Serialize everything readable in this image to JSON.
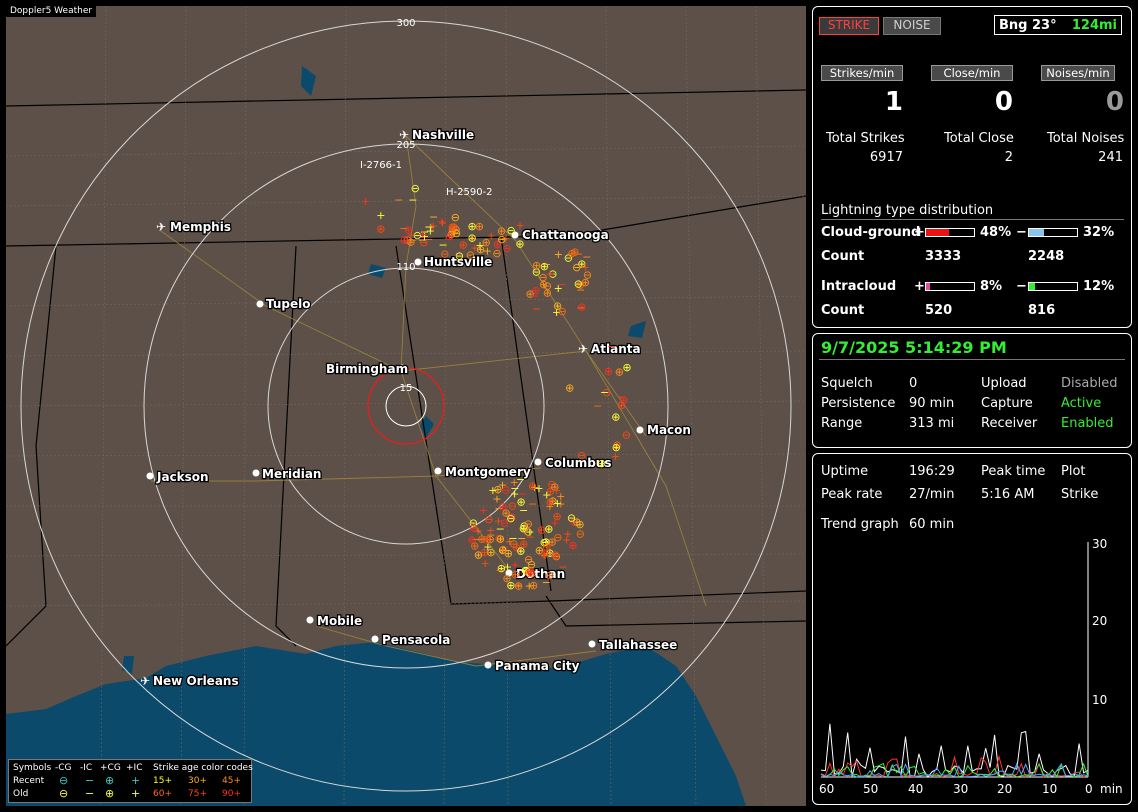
{
  "app": {
    "title": "Doppler5 Weather"
  },
  "header": {
    "strike_label": "STRIKE",
    "noise_label": "NOISE",
    "bearing": "Bng 23°",
    "range": "124mi"
  },
  "rates": {
    "strikes_label": "Strikes/min",
    "close_label": "Close/min",
    "noises_label": "Noises/min",
    "strikes": "1",
    "close": "0",
    "noises": "0"
  },
  "totals": {
    "strikes_label": "Total Strikes",
    "close_label": "Total Close",
    "noises_label": "Total Noises",
    "strikes": "6917",
    "close": "2",
    "noises": "241"
  },
  "distribution": {
    "title": "Lightning type distribution",
    "cg_label": "Cloud-ground",
    "ic_label": "Intracloud",
    "count_label": "Count",
    "plus": "+",
    "minus": "−",
    "cg_pos_pct": "48%",
    "cg_neg_pct": "32%",
    "cg_pos_count": "3333",
    "cg_neg_count": "2248",
    "ic_pos_pct": "8%",
    "ic_neg_pct": "12%",
    "ic_pos_count": "520",
    "ic_neg_count": "816",
    "cg_pos_fill": 0.48,
    "cg_neg_fill": 0.32,
    "ic_pos_fill": 0.08,
    "ic_neg_fill": 0.12
  },
  "status": {
    "datetime": "9/7/2025 5:14:29 PM",
    "squelch_label": "Squelch",
    "squelch": "0",
    "persistence_label": "Persistence",
    "persistence": "90 min",
    "range_label": "Range",
    "range": "313 mi",
    "upload_label": "Upload",
    "upload": "Disabled",
    "capture_label": "Capture",
    "capture": "Active",
    "receiver_label": "Receiver",
    "receiver": "Enabled"
  },
  "stats": {
    "uptime_label": "Uptime",
    "uptime": "196:29",
    "peak_time_label": "Peak time",
    "peak_time": "5:16 AM",
    "plot_label": "Plot",
    "plot": "Strike",
    "peak_rate_label": "Peak rate",
    "peak_rate": "27/min",
    "trend_label": "Trend graph",
    "trend": "60 min"
  },
  "trend_axis": {
    "y_ticks": [
      "30",
      "20",
      "10"
    ],
    "x_ticks": [
      "60",
      "50",
      "40",
      "30",
      "20",
      "10",
      "0"
    ],
    "unit": "min"
  },
  "map": {
    "rings": [
      "300",
      "205",
      "110",
      "15"
    ],
    "cities": [
      "Nashville",
      "Memphis",
      "Chattanooga",
      "Huntsville",
      "Tupelo",
      "Atlanta",
      "Birmingham",
      "Macon",
      "Columbus",
      "Jackson",
      "Meridian",
      "Montgomery",
      "Dothan",
      "Mobile",
      "Pensacola",
      "Tallahassee",
      "Panama City",
      "New Orleans"
    ],
    "road_labels": [
      "I-2766-1",
      "H-2590-2"
    ]
  },
  "legend": {
    "symbols_label": "Symbols",
    "neg_cg": "-CG",
    "neg_ic": "-IC",
    "pos_cg": "+CG",
    "pos_ic": "+IC",
    "age_label": "Strike age color codes",
    "recent_label": "Recent",
    "old_label": "Old",
    "recent_ages": [
      "15+",
      "30+",
      "45+"
    ],
    "old_ages": [
      "60+",
      "75+",
      "90+"
    ],
    "age_colors": [
      "#ffff33",
      "#ffb020",
      "#ff8c1a",
      "#ff6a10",
      "#ff4a10",
      "#ff3020"
    ]
  },
  "colors": {
    "land": "#5c5048",
    "water": "#0b4a6a",
    "active": "#33ee33",
    "strike_red": "#ff3333",
    "grid": "#c8c8c8"
  }
}
